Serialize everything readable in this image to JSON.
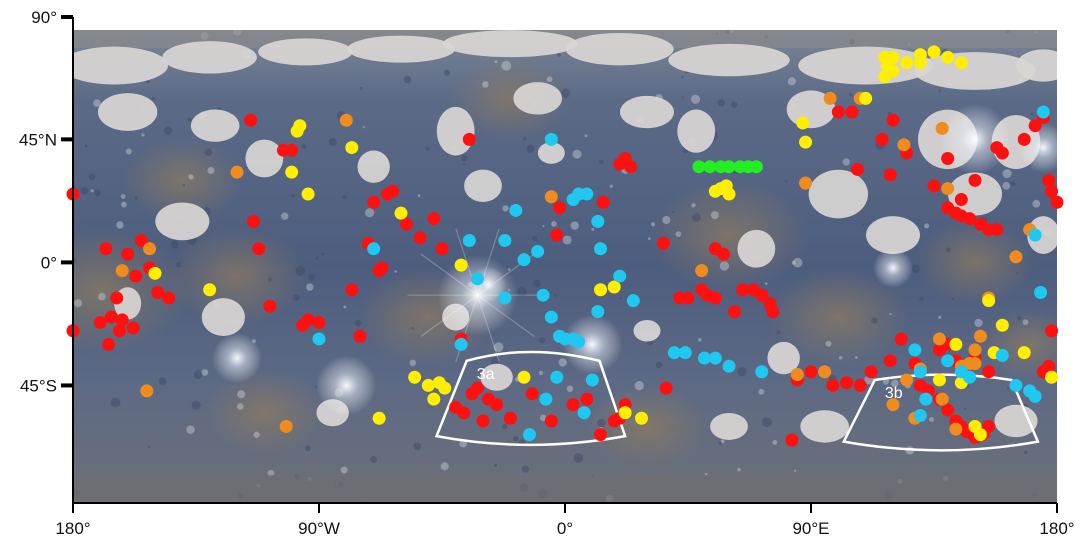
{
  "axes": {
    "y_ticks": [
      {
        "lat": 90,
        "label": "90°"
      },
      {
        "lat": 45,
        "label": "45°N"
      },
      {
        "lat": 0,
        "label": "0°"
      },
      {
        "lat": -45,
        "label": "45°S"
      }
    ],
    "x_ticks": [
      {
        "lon": -180,
        "label": "180°"
      },
      {
        "lon": -90,
        "label": "90°W"
      },
      {
        "lon": 0,
        "label": "0°"
      },
      {
        "lon": 90,
        "label": "90°E"
      },
      {
        "lon": 180,
        "label": "180°"
      }
    ],
    "lon_range": [
      -180,
      180
    ],
    "lat_range": [
      -88,
      85
    ]
  },
  "regions": [
    {
      "id": "3a",
      "label": "3a",
      "lon_min": -47,
      "lon_max": 22,
      "lat_top": -36,
      "lat_bottom": -65,
      "top_mid_lon": -13,
      "top_mid_lat": -31,
      "bottom_mid_lat": -67
    },
    {
      "id": "3b",
      "label": "3b",
      "lon_min": 102,
      "lon_max": 173,
      "lat_top": -43,
      "lat_bottom": -67,
      "top_mid_lon": 138,
      "top_mid_lat": -40,
      "bottom_mid_lat": -69
    }
  ],
  "colors": {
    "red": "#ff1010",
    "orange": "#f08c1e",
    "yellow": "#ffee00",
    "cyan": "#1ec8f0",
    "green": "#22ee22",
    "surface_dark": "#4a5a7a",
    "surface_mid": "#8a8f9e",
    "surface_brown": "#8c7a62",
    "mask_gray": "#d9d6d4",
    "frame": "#ffffff"
  },
  "chart_data": {
    "type": "scatter",
    "x_axis": "longitude",
    "y_axis": "latitude",
    "series": [
      {
        "color": "red",
        "points": [
          [
            -180,
            25
          ],
          [
            -180,
            -25
          ],
          [
            -168,
            5
          ],
          [
            -164,
            -13
          ],
          [
            -160,
            3
          ],
          [
            -155,
            8
          ],
          [
            -152,
            -2
          ],
          [
            -149,
            -11
          ],
          [
            -145,
            -13
          ],
          [
            -157,
            -5
          ],
          [
            -166,
            -20
          ],
          [
            -162,
            -21
          ],
          [
            -158,
            -24
          ],
          [
            -170,
            -22
          ],
          [
            -163,
            -25
          ],
          [
            -167,
            -30
          ],
          [
            -115,
            52
          ],
          [
            -114,
            15
          ],
          [
            -112,
            5
          ],
          [
            -108,
            -16
          ],
          [
            -103,
            41
          ],
          [
            -100,
            41
          ],
          [
            -96,
            -23
          ],
          [
            -94,
            -21
          ],
          [
            -90,
            -22
          ],
          [
            -75,
            -27
          ],
          [
            -78,
            -10
          ],
          [
            -68,
            -3
          ],
          [
            -67,
            -2
          ],
          [
            -65,
            25
          ],
          [
            -63,
            26
          ],
          [
            -70,
            22
          ],
          [
            -72,
            7
          ],
          [
            -58,
            14
          ],
          [
            -53,
            9
          ],
          [
            -48,
            16
          ],
          [
            -45,
            5
          ],
          [
            -38,
            -28
          ],
          [
            -35,
            45
          ],
          [
            -34,
            -48
          ],
          [
            -32,
            -46
          ],
          [
            -40,
            -53
          ],
          [
            -37,
            -55
          ],
          [
            -30,
            -58
          ],
          [
            -28,
            -50
          ],
          [
            -25,
            -52
          ],
          [
            -20,
            -57
          ],
          [
            -12,
            -48
          ],
          [
            -5,
            -58
          ],
          [
            -3,
            10
          ],
          [
            -2,
            20
          ],
          [
            3,
            -52
          ],
          [
            8,
            -50
          ],
          [
            13,
            -63
          ],
          [
            18,
            -58
          ],
          [
            20,
            -57
          ],
          [
            22,
            -52
          ],
          [
            14,
            22
          ],
          [
            20,
            36
          ],
          [
            24,
            35
          ],
          [
            22,
            38
          ],
          [
            36,
            7
          ],
          [
            37,
            -46
          ],
          [
            42,
            -13
          ],
          [
            45,
            -13
          ],
          [
            50,
            -10
          ],
          [
            52,
            -12
          ],
          [
            55,
            -13
          ],
          [
            55,
            5
          ],
          [
            58,
            3
          ],
          [
            62,
            -18
          ],
          [
            65,
            -10
          ],
          [
            69,
            -10
          ],
          [
            72,
            -12
          ],
          [
            75,
            -15
          ],
          [
            76,
            -18
          ],
          [
            83,
            -65
          ],
          [
            90,
            -40
          ],
          [
            85,
            -43
          ],
          [
            98,
            -45
          ],
          [
            103,
            -44
          ],
          [
            108,
            -45
          ],
          [
            112,
            -40
          ],
          [
            119,
            -36
          ],
          [
            123,
            -28
          ],
          [
            128,
            -37
          ],
          [
            130,
            -45
          ],
          [
            133,
            -47
          ],
          [
            137,
            -50
          ],
          [
            140,
            -54
          ],
          [
            143,
            -58
          ],
          [
            145,
            -60
          ],
          [
            147,
            -62
          ],
          [
            150,
            -64
          ],
          [
            153,
            -63
          ],
          [
            155,
            -60
          ],
          [
            143,
            -36
          ],
          [
            140,
            -30
          ],
          [
            150,
            -35
          ],
          [
            155,
            -40
          ],
          [
            137,
            -32
          ],
          [
            107,
            34
          ],
          [
            116,
            45
          ],
          [
            119,
            32
          ],
          [
            135,
            28
          ],
          [
            140,
            20
          ],
          [
            143,
            18
          ],
          [
            145,
            17
          ],
          [
            148,
            16
          ],
          [
            152,
            14
          ],
          [
            155,
            12
          ],
          [
            158,
            12
          ],
          [
            168,
            45
          ],
          [
            172,
            50
          ],
          [
            175,
            53
          ],
          [
            177,
            30
          ],
          [
            178,
            26
          ],
          [
            180,
            22
          ],
          [
            178,
            -25
          ],
          [
            177,
            -38
          ],
          [
            175,
            -40
          ],
          [
            100,
            55
          ],
          [
            120,
            52
          ],
          [
            105,
            55
          ],
          [
            145,
            23
          ],
          [
            150,
            30
          ],
          [
            125,
            40
          ],
          [
            140,
            38
          ],
          [
            158,
            42
          ],
          [
            160,
            40
          ]
        ]
      },
      {
        "color": "orange",
        "points": [
          [
            -152,
            5
          ],
          [
            -162,
            -3
          ],
          [
            -153,
            -47
          ],
          [
            -120,
            33
          ],
          [
            -102,
            -60
          ],
          [
            -80,
            52
          ],
          [
            -5,
            24
          ],
          [
            50,
            -3
          ],
          [
            88,
            29
          ],
          [
            95,
            -40
          ],
          [
            85,
            -41
          ],
          [
            125,
            -43
          ],
          [
            120,
            -52
          ],
          [
            130,
            -39
          ],
          [
            150,
            -37
          ],
          [
            138,
            -50
          ],
          [
            137,
            -28
          ],
          [
            145,
            -38
          ],
          [
            150,
            -32
          ],
          [
            155,
            -13
          ],
          [
            143,
            -61
          ],
          [
            128,
            -57
          ],
          [
            97,
            60
          ],
          [
            108,
            60
          ],
          [
            138,
            49
          ],
          [
            124,
            43
          ],
          [
            140,
            27
          ],
          [
            152,
            -27
          ],
          [
            165,
            2
          ],
          [
            148,
            -37
          ],
          [
            170,
            12
          ]
        ]
      },
      {
        "color": "yellow",
        "points": [
          [
            -150,
            -4
          ],
          [
            -130,
            -10
          ],
          [
            -98,
            48
          ],
          [
            -97,
            50
          ],
          [
            -100,
            33
          ],
          [
            -94,
            25
          ],
          [
            -78,
            42
          ],
          [
            -60,
            18
          ],
          [
            -48,
            -50
          ],
          [
            -50,
            -45
          ],
          [
            -46,
            -44
          ],
          [
            -44,
            -46
          ],
          [
            -55,
            -42
          ],
          [
            -68,
            -57
          ],
          [
            -38,
            -1
          ],
          [
            -15,
            -42
          ],
          [
            18,
            -9
          ],
          [
            13,
            -10
          ],
          [
            22,
            -55
          ],
          [
            28,
            -57
          ],
          [
            57,
            27
          ],
          [
            59,
            28
          ],
          [
            60,
            25
          ],
          [
            55,
            26
          ],
          [
            87,
            51
          ],
          [
            88,
            44
          ],
          [
            117,
            75
          ],
          [
            120,
            75
          ],
          [
            125,
            73
          ],
          [
            130,
            76
          ],
          [
            135,
            77
          ],
          [
            140,
            75
          ],
          [
            145,
            73
          ],
          [
            118,
            72
          ],
          [
            130,
            73
          ],
          [
            117,
            68
          ],
          [
            120,
            70
          ],
          [
            110,
            60
          ],
          [
            160,
            -23
          ],
          [
            168,
            -33
          ],
          [
            157,
            -33
          ],
          [
            152,
            -63
          ],
          [
            150,
            -60
          ],
          [
            178,
            -42
          ],
          [
            155,
            -14
          ],
          [
            137,
            -43
          ],
          [
            143,
            -30
          ],
          [
            145,
            -44
          ]
        ]
      },
      {
        "color": "cyan",
        "points": [
          [
            -90,
            -28
          ],
          [
            -70,
            5
          ],
          [
            -38,
            -30
          ],
          [
            -35,
            8
          ],
          [
            -32,
            -6
          ],
          [
            -22,
            -13
          ],
          [
            -22,
            8
          ],
          [
            -18,
            19
          ],
          [
            -15,
            1
          ],
          [
            -10,
            4
          ],
          [
            -8,
            -12
          ],
          [
            -5,
            45
          ],
          [
            -5,
            -20
          ],
          [
            -2,
            -27
          ],
          [
            0,
            -28
          ],
          [
            3,
            -28
          ],
          [
            5,
            -29
          ],
          [
            3,
            23
          ],
          [
            5,
            25
          ],
          [
            8,
            25
          ],
          [
            12,
            15
          ],
          [
            12,
            -18
          ],
          [
            10,
            -43
          ],
          [
            7,
            -55
          ],
          [
            -13,
            -63
          ],
          [
            -7,
            -50
          ],
          [
            -3,
            -42
          ],
          [
            13,
            5
          ],
          [
            20,
            -5
          ],
          [
            25,
            -14
          ],
          [
            40,
            -33
          ],
          [
            44,
            -33
          ],
          [
            51,
            -35
          ],
          [
            55,
            -35
          ],
          [
            60,
            -38
          ],
          [
            72,
            -40
          ],
          [
            128,
            -32
          ],
          [
            130,
            -40
          ],
          [
            132,
            -50
          ],
          [
            140,
            -36
          ],
          [
            145,
            -40
          ],
          [
            148,
            -42
          ],
          [
            130,
            -56
          ],
          [
            160,
            -34
          ],
          [
            165,
            -45
          ],
          [
            170,
            -47
          ],
          [
            172,
            -49
          ],
          [
            174,
            -11
          ],
          [
            175,
            55
          ],
          [
            172,
            10
          ]
        ]
      },
      {
        "color": "green",
        "points": [
          [
            49,
            35
          ],
          [
            53,
            35
          ],
          [
            57,
            35
          ],
          [
            60,
            35
          ],
          [
            64,
            35
          ],
          [
            67,
            35
          ],
          [
            70,
            35
          ]
        ]
      }
    ]
  }
}
